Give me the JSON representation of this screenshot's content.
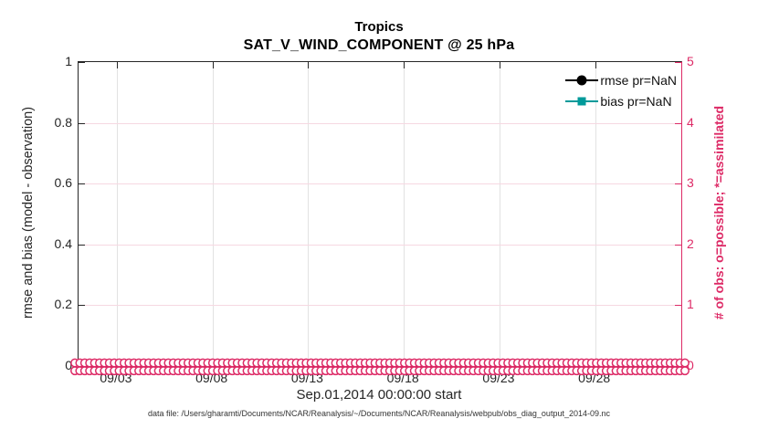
{
  "title": {
    "line1": "Tropics",
    "line2": "SAT_V_WIND_COMPONENT @ 25 hPa"
  },
  "axes": {
    "left": {
      "label": "rmse and bias (model - observation)",
      "ticks": [
        "0",
        "0.2",
        "0.4",
        "0.6",
        "0.8",
        "1"
      ],
      "range": [
        0,
        1
      ],
      "color": "#262626"
    },
    "right": {
      "label": "# of obs: o=possible; *=assimilated",
      "ticks": [
        "0",
        "1",
        "2",
        "3",
        "4",
        "5"
      ],
      "range": [
        0,
        5
      ],
      "color": "#dd2a66"
    },
    "x": {
      "label": "Sep.01,2014 00:00:00 start",
      "ticks": [
        "09/03",
        "09/08",
        "09/13",
        "09/18",
        "09/23",
        "09/28"
      ],
      "tick_days_from_start": [
        2,
        7,
        12,
        17,
        22,
        27
      ],
      "range_days": [
        0,
        31.5
      ]
    }
  },
  "legend": {
    "items": [
      {
        "label": "rmse pr=NaN",
        "color": "#000000",
        "marker": "circle"
      },
      {
        "label": "bias pr=NaN",
        "color": "#009a9a",
        "marker": "square"
      }
    ]
  },
  "footer": {
    "text": "data file: /Users/gharamti/Documents/NCAR/Reanalysis/~/Documents/NCAR/Reanalysis/webpub/obs_diag_output_2014-09.nc"
  },
  "colors": {
    "obs_axis_pink": "#dd2a66",
    "obs_grid_pink": "#f6d8e2",
    "x_grid_gray": "#e2e2e2",
    "rmse_black": "#000000",
    "bias_teal": "#009a9a",
    "axis_dark": "#262626"
  },
  "chart_data": {
    "type": "line",
    "title": "Tropics",
    "subtitle": "SAT_V_WIND_COMPONENT @ 25 hPa",
    "xlabel": "Sep.01,2014 00:00:00 start",
    "ylabel_left": "rmse and bias (model - observation)",
    "ylabel_right": "# of obs: o=possible; *=assimilated",
    "ylim_left": [
      0,
      1
    ],
    "ylim_right": [
      0,
      5
    ],
    "x_tick_labels": [
      "09/03",
      "09/08",
      "09/13",
      "09/18",
      "09/23",
      "09/28"
    ],
    "x_tick_days_from_start": [
      2,
      7,
      12,
      17,
      22,
      27
    ],
    "x_range_days": [
      0,
      31.5
    ],
    "grid": true,
    "legend_position": "top-right-inside",
    "series": [
      {
        "name": "rmse pr=NaN",
        "color": "#000000",
        "marker": "circle",
        "values": [],
        "note": "pr=NaN, no rmse curve plotted"
      },
      {
        "name": "bias pr=NaN",
        "color": "#009a9a",
        "marker": "square",
        "values": [],
        "note": "pr=NaN, no bias curve plotted"
      }
    ],
    "obs_markers": {
      "description": "o=possible and *=assimilated observation-count markers, all at value 0 along the x-axis for every observation time",
      "value": 0,
      "marker_count": 125,
      "color": "#dd2a66"
    }
  }
}
